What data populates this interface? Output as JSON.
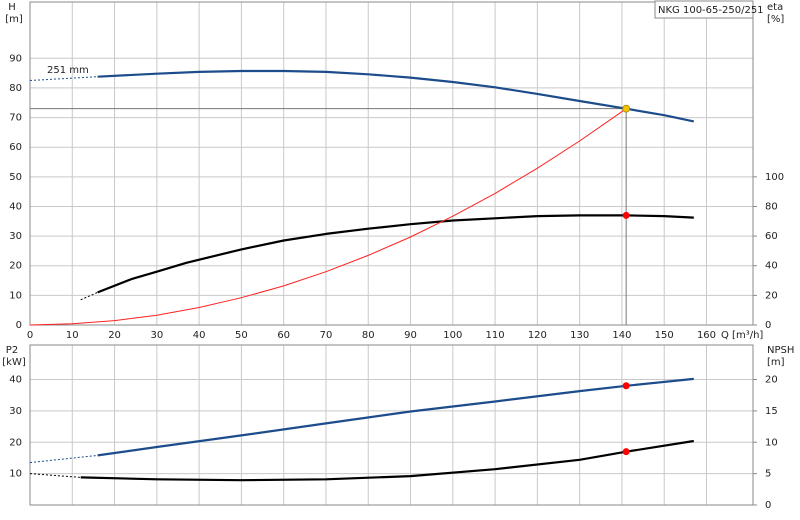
{
  "chart_data": [
    {
      "type": "line",
      "title": "NKG 100-65-250/251",
      "annotation": "251 mm",
      "ylabel": "H",
      "yunit": "[m]",
      "y2label": "eta",
      "y2unit": "[%]",
      "xlabel": "Q [m³/h]",
      "xlim": [
        0,
        171
      ],
      "xticks": [
        0,
        10,
        20,
        30,
        40,
        50,
        60,
        70,
        80,
        90,
        100,
        110,
        120,
        130,
        140,
        150,
        160
      ],
      "ylim": [
        0,
        109
      ],
      "yticks": [
        0,
        10,
        20,
        30,
        40,
        50,
        60,
        70,
        80,
        90
      ],
      "y2lim": [
        0,
        218
      ],
      "y2ticks": [
        0,
        20,
        40,
        60,
        80,
        100
      ],
      "grid": true,
      "series": [
        {
          "color": "#1c4c8c",
          "dash": true,
          "x": [
            0,
            16
          ],
          "values": [
            82.5,
            83.8
          ]
        },
        {
          "color": "#1c4c8c",
          "x": [
            16,
            30,
            40,
            50,
            60,
            70,
            80,
            90,
            100,
            110,
            120,
            130,
            141,
            150,
            157
          ],
          "values": [
            83.8,
            84.8,
            85.4,
            85.7,
            85.7,
            85.4,
            84.6,
            83.5,
            82,
            80.2,
            78,
            75.6,
            73,
            70.8,
            68.7
          ]
        },
        {
          "color": "#000000",
          "dash": true,
          "axis": "y2",
          "x": [
            12,
            16
          ],
          "values": [
            17,
            22
          ]
        },
        {
          "color": "#000000",
          "axis": "y2",
          "x": [
            16,
            24,
            30,
            37,
            50,
            60,
            70,
            80,
            90,
            100,
            110,
            120,
            130,
            141,
            150,
            157
          ],
          "values": [
            22,
            31,
            36,
            42,
            51,
            57,
            61.5,
            65,
            68,
            70.5,
            72,
            73.5,
            74,
            74,
            73.5,
            72.5
          ]
        },
        {
          "color": "#ff2020",
          "thin": true,
          "x": [
            0,
            10,
            20,
            30,
            40,
            50,
            60,
            70,
            80,
            90,
            100,
            110,
            120,
            130,
            141
          ],
          "values": [
            0,
            0.4,
            1.5,
            3.3,
            5.9,
            9.2,
            13.2,
            18,
            23.5,
            29.7,
            36.7,
            44.4,
            52.9,
            62.1,
            73
          ]
        }
      ],
      "markers": [
        {
          "x": 141,
          "y": 73,
          "color": "#f5c400",
          "guides": true
        },
        {
          "x": 141,
          "y": 74,
          "color": "#ff0000",
          "axis": "y2"
        }
      ]
    },
    {
      "type": "line",
      "ylabel": "P2",
      "yunit": "[kW]",
      "y2label": "NPSH",
      "y2unit": "[m]",
      "xlim": [
        0,
        171
      ],
      "xticks": [
        0,
        10,
        20,
        30,
        40,
        50,
        60,
        70,
        80,
        90,
        100,
        110,
        120,
        130,
        140,
        150,
        160
      ],
      "ylim": [
        0,
        51
      ],
      "yticks": [
        10,
        20,
        30,
        40
      ],
      "y2lim": [
        0,
        25.5
      ],
      "y2ticks": [
        0,
        5,
        10,
        15,
        20
      ],
      "grid": true,
      "series": [
        {
          "color": "#1c4c8c",
          "dash": true,
          "x": [
            0,
            16
          ],
          "values": [
            13.5,
            15.8
          ]
        },
        {
          "color": "#1c4c8c",
          "x": [
            16,
            30,
            50,
            70,
            90,
            110,
            130,
            141,
            157
          ],
          "values": [
            15.8,
            18.5,
            22.2,
            26,
            29.8,
            33,
            36.3,
            38,
            40.2
          ]
        },
        {
          "color": "#000000",
          "dash": true,
          "axis": "y2",
          "x": [
            0,
            12
          ],
          "values": [
            5,
            4.4
          ]
        },
        {
          "color": "#000000",
          "axis": "y2",
          "x": [
            12,
            30,
            50,
            70,
            90,
            110,
            130,
            141,
            157
          ],
          "values": [
            4.4,
            4.1,
            3.95,
            4.1,
            4.6,
            5.7,
            7.2,
            8.5,
            10.2
          ]
        }
      ],
      "markers": [
        {
          "x": 141,
          "y": 38,
          "color": "#ff0000"
        },
        {
          "x": 141,
          "y": 8.5,
          "color": "#ff0000",
          "axis": "y2"
        }
      ]
    }
  ]
}
